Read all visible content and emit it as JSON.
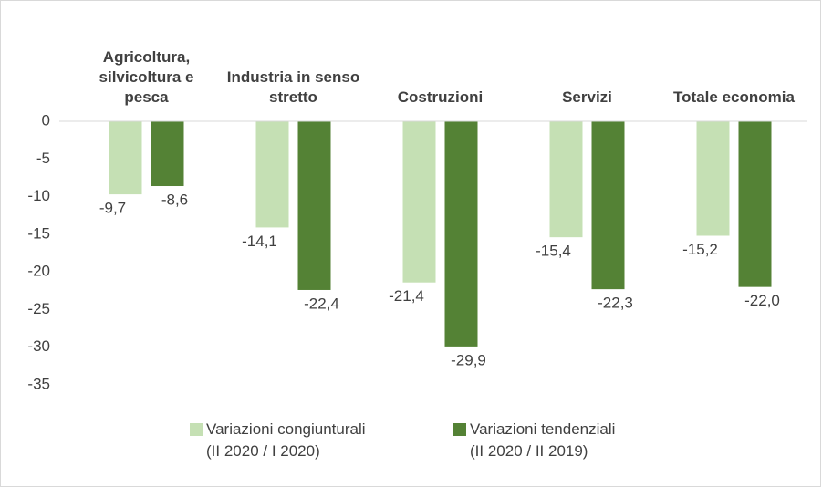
{
  "chart_data": {
    "type": "bar",
    "categories": [
      "Agricoltura, silvicoltura e pesca",
      "Industria in senso stretto",
      "Costruzioni",
      "Servizi",
      "Totale economia"
    ],
    "series": [
      {
        "name": "Variazioni congiunturali\n(II 2020 / I 2020)",
        "color": "#c5e0b4",
        "values": [
          -9.7,
          -14.1,
          -21.4,
          -15.4,
          -15.2
        ],
        "value_labels": [
          "-9,7",
          "-14,1",
          "-21,4",
          "-15,4",
          "-15,2"
        ]
      },
      {
        "name": "Variazioni tendenziali\n(II 2020 / II 2019)",
        "color": "#548235",
        "values": [
          -8.6,
          -22.4,
          -29.9,
          -22.3,
          -22.0
        ],
        "value_labels": [
          "-8,6",
          "-22,4",
          "-29,9",
          "-22,3",
          "-22,0"
        ]
      }
    ],
    "ylim": [
      -35,
      0
    ],
    "yticks": [
      0,
      -5,
      -10,
      -15,
      -20,
      -25,
      -30,
      -35
    ],
    "legend": "bottom"
  }
}
